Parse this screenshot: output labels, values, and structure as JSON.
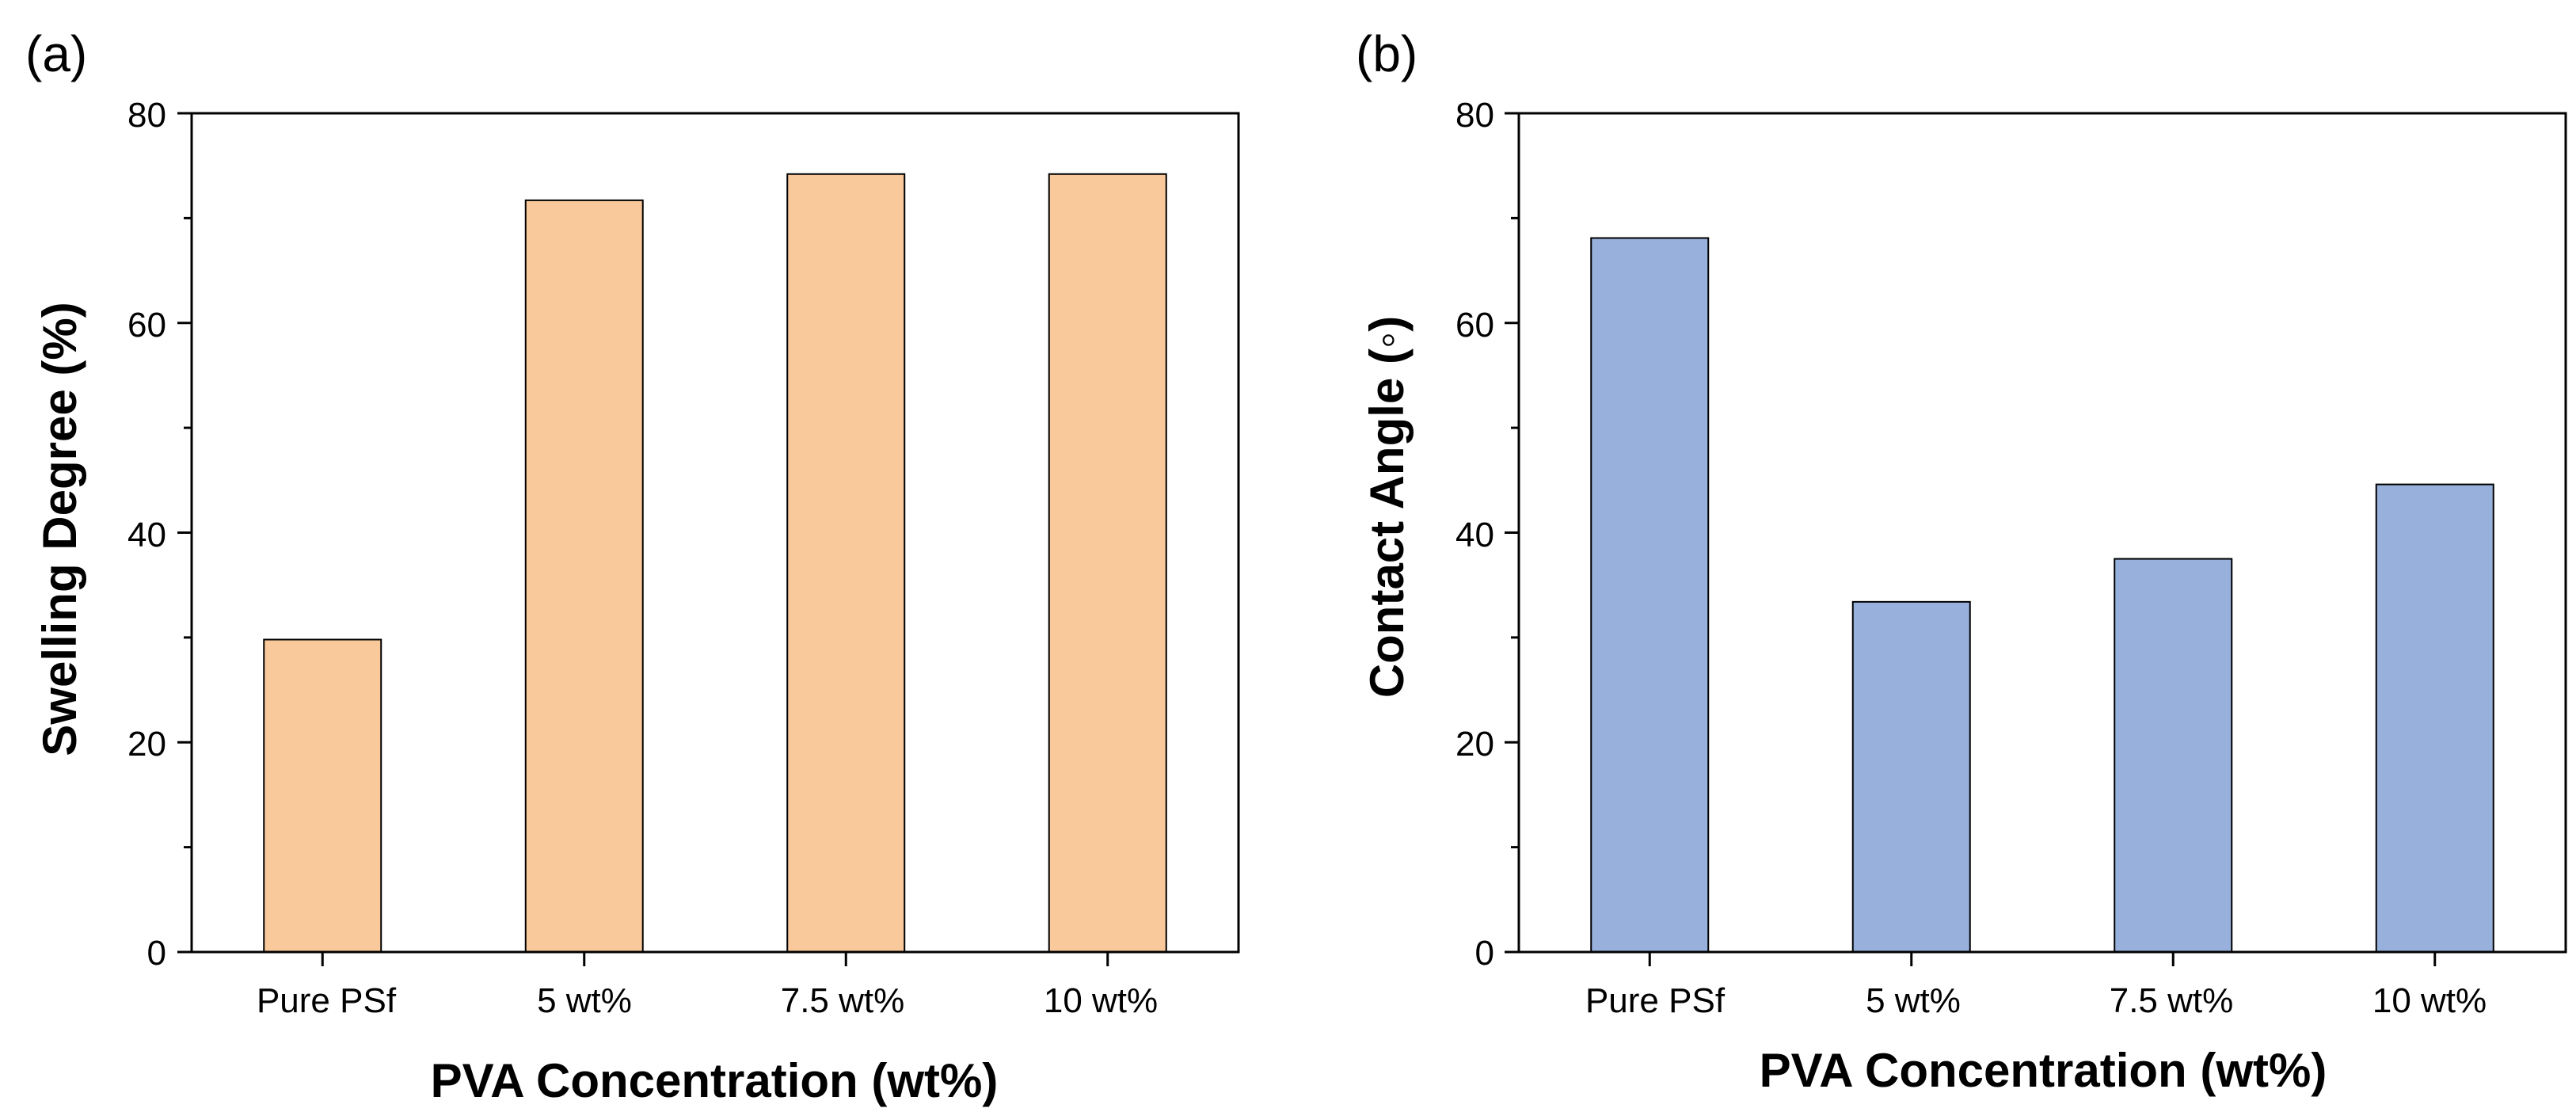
{
  "chart_data": [
    {
      "type": "bar",
      "panel_label": "(a)",
      "categories": [
        "Pure PSf",
        "5 wt%",
        "7.5 wt%",
        "10 wt%"
      ],
      "values": [
        29.8,
        71.7,
        74.2,
        74.2
      ],
      "xlabel": "PVA Concentration (wt%)",
      "ylabel": "Swelling Degree (%)",
      "ylim": [
        0,
        80
      ],
      "yticks": [
        "0",
        "20",
        "40",
        "60",
        "80"
      ],
      "bar_color": "#F9C89B",
      "grid": false
    },
    {
      "type": "bar",
      "panel_label": "(b)",
      "categories": [
        "Pure PSf",
        "5 wt%",
        "7.5 wt%",
        "10 wt%"
      ],
      "values": [
        68.1,
        33.4,
        37.5,
        44.6
      ],
      "xlabel": "PVA Concentration (wt%)",
      "ylabel": "Contact Angle (◦)",
      "ylim": [
        0,
        80
      ],
      "yticks": [
        "0",
        "20",
        "40",
        "60",
        "80"
      ],
      "bar_color": "#97B0DC",
      "grid": false
    }
  ]
}
